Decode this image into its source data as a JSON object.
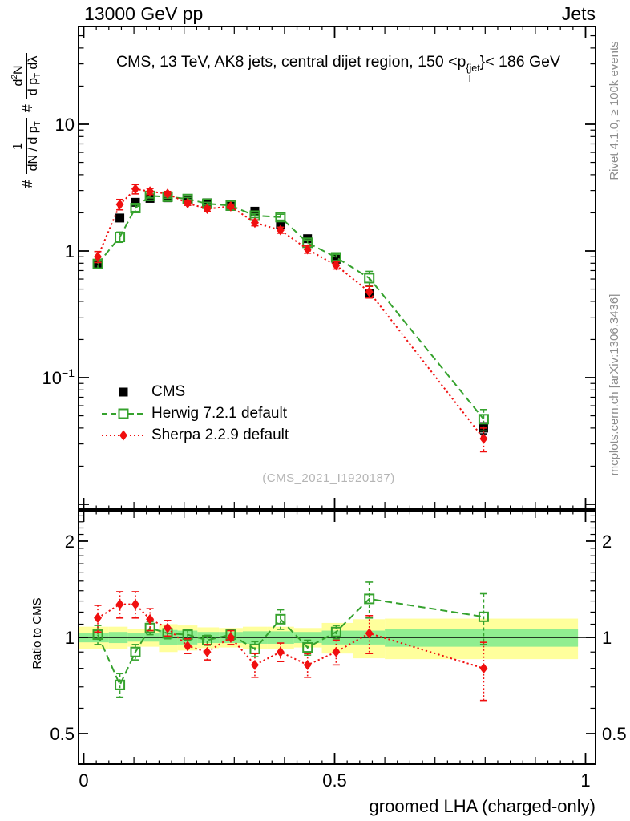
{
  "header": {
    "left": "13000 GeV pp",
    "right": "Jets"
  },
  "panel_title": {
    "pre": "CMS, 13 TeV, AK8 jets, central dijet region, 150 <p",
    "sup": "{jet",
    "sub": "T",
    "post": "}< 186 GeV"
  },
  "ylabel": {
    "hash1": "#",
    "f1_num": "1",
    "f1_den_a": "dN / d p",
    "f1_den_sub": "T",
    "hash2": "#",
    "f2_num_a": "d",
    "f2_num_sup": "2",
    "f2_num_b": "N",
    "f2_den_a": "d p",
    "f2_den_sub": "T",
    "f2_den_b": " dλ"
  },
  "ratio_label": "Ratio to CMS",
  "xlabel": "groomed LHA (charged-only)",
  "watermark": {
    "text": "(CMS_2021_I1920187)"
  },
  "side_notes": {
    "top": "Rivet 4.1.0, ≥ 100k events",
    "bottom": "mcplots.cern.ch [arXiv:1306.3436]"
  },
  "legend": {
    "items": [
      {
        "label": "CMS",
        "series": "cms"
      },
      {
        "label": "Herwig 7.2.1 default",
        "series": "herwig"
      },
      {
        "label": "Sherpa 2.2.9 default",
        "series": "sherpa"
      }
    ]
  },
  "colors": {
    "cms": "#000000",
    "herwig": "#35a22d",
    "sherpa": "#f00f0f",
    "band_yellow": "#ffff9c",
    "band_green": "#90ee90",
    "ref_line": "#000000",
    "frame": "#000000"
  },
  "axes": {
    "main_y_ticks": [
      {
        "text": "10",
        "sup": "",
        "value": 10
      },
      {
        "text": "1",
        "sup": "",
        "value": 1
      },
      {
        "text": "10",
        "sup": "−1",
        "value": 0.1
      }
    ],
    "ratio_y_ticks": [
      {
        "text": "2",
        "value": 2
      },
      {
        "text": "1",
        "value": 1
      },
      {
        "text": "0.5",
        "value": 0.5
      }
    ],
    "x_ticks": [
      {
        "text": "0",
        "value": 0
      },
      {
        "text": "0.5",
        "value": 0.5
      },
      {
        "text": "1",
        "value": 1
      }
    ]
  },
  "chart_data": [
    {
      "type": "scatter",
      "panel": "main",
      "title": "CMS, 13 TeV, AK8 jets, central dijet region, 150 < pT{jet} < 186 GeV",
      "xlabel": "groomed LHA (charged-only)",
      "ylabel": "# 1/(dN/dpT) # d2N/(dpT dlambda)",
      "yscale": "log",
      "xlim": [
        -0.0104,
        1.0199
      ],
      "ylim": [
        0.0092,
        59
      ],
      "x": [
        0.028,
        0.072,
        0.103,
        0.132,
        0.167,
        0.207,
        0.246,
        0.293,
        0.341,
        0.392,
        0.446,
        0.503,
        0.569,
        0.797
      ],
      "series": [
        {
          "name": "CMS",
          "color_key": "cms",
          "marker": "filled-square",
          "line": "none",
          "values": [
            0.78,
            1.82,
            2.42,
            2.6,
            2.63,
            2.53,
            2.4,
            2.25,
            2.06,
            1.62,
            1.25,
            0.86,
            0.46,
            0.04
          ],
          "errors": [
            0.04,
            0.08,
            0.09,
            0.09,
            0.08,
            0.08,
            0.07,
            0.07,
            0.06,
            0.05,
            0.04,
            0.03,
            0.02,
            0.004
          ]
        },
        {
          "name": "Herwig 7.2.1 default",
          "color_key": "herwig",
          "marker": "open-square",
          "line": "dashed",
          "values": [
            0.79,
            1.29,
            2.18,
            2.72,
            2.68,
            2.57,
            2.36,
            2.28,
            1.9,
            1.85,
            1.16,
            0.89,
            0.61,
            0.047
          ],
          "errors": [
            0.06,
            0.12,
            0.13,
            0.1,
            0.08,
            0.07,
            0.06,
            0.06,
            0.07,
            0.1,
            0.06,
            0.05,
            0.08,
            0.009
          ]
        },
        {
          "name": "Sherpa 2.2.9 default",
          "color_key": "sherpa",
          "marker": "filled-diamond",
          "line": "dotted",
          "values": [
            0.9,
            2.33,
            3.08,
            2.95,
            2.83,
            2.38,
            2.15,
            2.25,
            1.67,
            1.46,
            1.03,
            0.77,
            0.475,
            0.033
          ],
          "errors": [
            0.09,
            0.22,
            0.26,
            0.16,
            0.12,
            0.09,
            0.09,
            0.09,
            0.09,
            0.08,
            0.07,
            0.05,
            0.05,
            0.007
          ]
        }
      ],
      "legend_position": "left-middle"
    },
    {
      "type": "scatter",
      "panel": "ratio",
      "ylabel": "Ratio to CMS",
      "yscale": "log",
      "ylim": [
        0.4,
        2.5
      ],
      "reference_line": 1.0,
      "x": [
        0.028,
        0.072,
        0.103,
        0.132,
        0.167,
        0.207,
        0.246,
        0.293,
        0.341,
        0.392,
        0.446,
        0.503,
        0.569,
        0.797
      ],
      "series": [
        {
          "name": "Herwig 7.2.1 default",
          "color_key": "herwig",
          "marker": "open-square",
          "line": "dashed",
          "values": [
            1.02,
            0.71,
            0.9,
            1.07,
            1.03,
            1.02,
            0.98,
            1.02,
            0.92,
            1.14,
            0.93,
            1.04,
            1.32,
            1.16
          ],
          "errors": [
            0.07,
            0.06,
            0.05,
            0.05,
            0.04,
            0.04,
            0.035,
            0.04,
            0.05,
            0.08,
            0.05,
            0.05,
            0.17,
            0.21
          ]
        },
        {
          "name": "Sherpa 2.2.9 default",
          "color_key": "sherpa",
          "marker": "filled-diamond",
          "line": "dotted",
          "values": [
            1.15,
            1.27,
            1.27,
            1.14,
            1.07,
            0.94,
            0.9,
            1.0,
            0.82,
            0.9,
            0.82,
            0.9,
            1.03,
            0.8
          ],
          "errors": [
            0.11,
            0.12,
            0.12,
            0.09,
            0.06,
            0.05,
            0.05,
            0.05,
            0.07,
            0.06,
            0.07,
            0.08,
            0.14,
            0.165
          ]
        }
      ],
      "bands": {
        "edges": [
          -0.009,
          0.05,
          0.0875,
          0.1175,
          0.15,
          0.187,
          0.2265,
          0.2695,
          0.317,
          0.3665,
          0.419,
          0.4745,
          0.536,
          0.6,
          0.985
        ],
        "yellow_halfwidth": [
          0.08,
          0.08,
          0.065,
          0.065,
          0.1,
          0.09,
          0.075,
          0.07,
          0.08,
          0.08,
          0.07,
          0.11,
          0.14,
          0.145
        ],
        "green_halfwidth": [
          0.035,
          0.04,
          0.03,
          0.03,
          0.055,
          0.05,
          0.04,
          0.04,
          0.045,
          0.045,
          0.04,
          0.05,
          0.05,
          0.065
        ]
      }
    }
  ]
}
